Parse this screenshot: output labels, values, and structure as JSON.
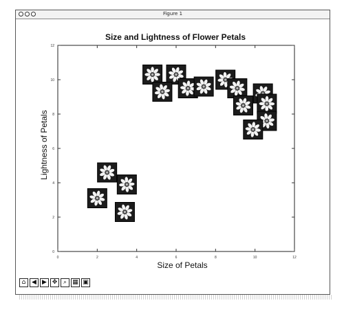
{
  "window": {
    "title": "Figure 1",
    "toolbar": [
      "home-icon",
      "back-icon",
      "forward-icon",
      "move-icon",
      "zoom-icon",
      "configure-icon",
      "save-icon"
    ]
  },
  "colors": {
    "frame": "#222222",
    "tick": "#333333",
    "text": "#111111"
  },
  "chart_data": {
    "type": "scatter",
    "title": "Size and Lightness of Flower Petals",
    "xlabel": "Size of Petals",
    "ylabel": "Lightness of Petals",
    "xlim": [
      0,
      12
    ],
    "ylim": [
      0,
      12
    ],
    "xticks": [
      "0",
      "2",
      "4",
      "6",
      "8",
      "10",
      "12"
    ],
    "yticks": [
      "0",
      "2",
      "4",
      "6",
      "8",
      "10",
      "12"
    ],
    "marker": "flower-image",
    "points": [
      {
        "x": 4.8,
        "y": 10.3
      },
      {
        "x": 6.0,
        "y": 10.3
      },
      {
        "x": 5.3,
        "y": 9.3
      },
      {
        "x": 6.6,
        "y": 9.5
      },
      {
        "x": 7.4,
        "y": 9.6
      },
      {
        "x": 8.5,
        "y": 10.0
      },
      {
        "x": 9.1,
        "y": 9.5
      },
      {
        "x": 10.4,
        "y": 9.2
      },
      {
        "x": 10.6,
        "y": 8.6
      },
      {
        "x": 9.4,
        "y": 8.5
      },
      {
        "x": 10.6,
        "y": 7.6
      },
      {
        "x": 9.9,
        "y": 7.1
      },
      {
        "x": 2.5,
        "y": 4.6
      },
      {
        "x": 3.5,
        "y": 3.9
      },
      {
        "x": 2.0,
        "y": 3.1
      },
      {
        "x": 3.4,
        "y": 2.3
      }
    ]
  }
}
